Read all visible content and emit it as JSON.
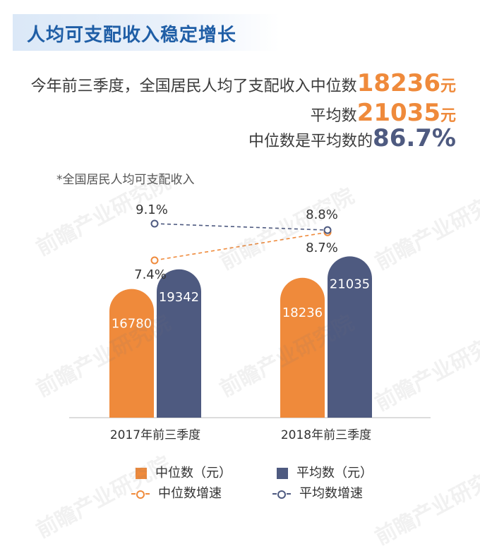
{
  "title": "人均可支配收入稳定增长",
  "summary": {
    "line1_prefix": "今年前三季度，全国居民人均了支配收入中位数",
    "median_value": "18236",
    "median_unit": "元",
    "line2_prefix": "平均数",
    "mean_value": "21035",
    "mean_unit": "元",
    "line3_prefix": "中位数是平均数的",
    "ratio_value": "86.7%"
  },
  "note": "*全国居民人均可支配收入",
  "watermark": "前瞻产业研究院",
  "colors": {
    "median": "#ef8a3b",
    "mean": "#4e5a80"
  },
  "chart_data": {
    "type": "bar",
    "categories": [
      "2017年前三季度",
      "2018年前三季度"
    ],
    "series": [
      {
        "name": "中位数（元）",
        "kind": "bar",
        "values": [
          16780,
          18236
        ]
      },
      {
        "name": "平均数（元）",
        "kind": "bar",
        "values": [
          19342,
          21035
        ]
      },
      {
        "name": "中位数增速",
        "kind": "line",
        "values": [
          7.4,
          8.7
        ],
        "labels": [
          "7.4%",
          "8.7%"
        ]
      },
      {
        "name": "平均数增速",
        "kind": "line",
        "values": [
          9.1,
          8.8
        ],
        "labels": [
          "9.1%",
          "8.8%"
        ]
      }
    ],
    "legend_position": "bottom",
    "grid": false
  }
}
